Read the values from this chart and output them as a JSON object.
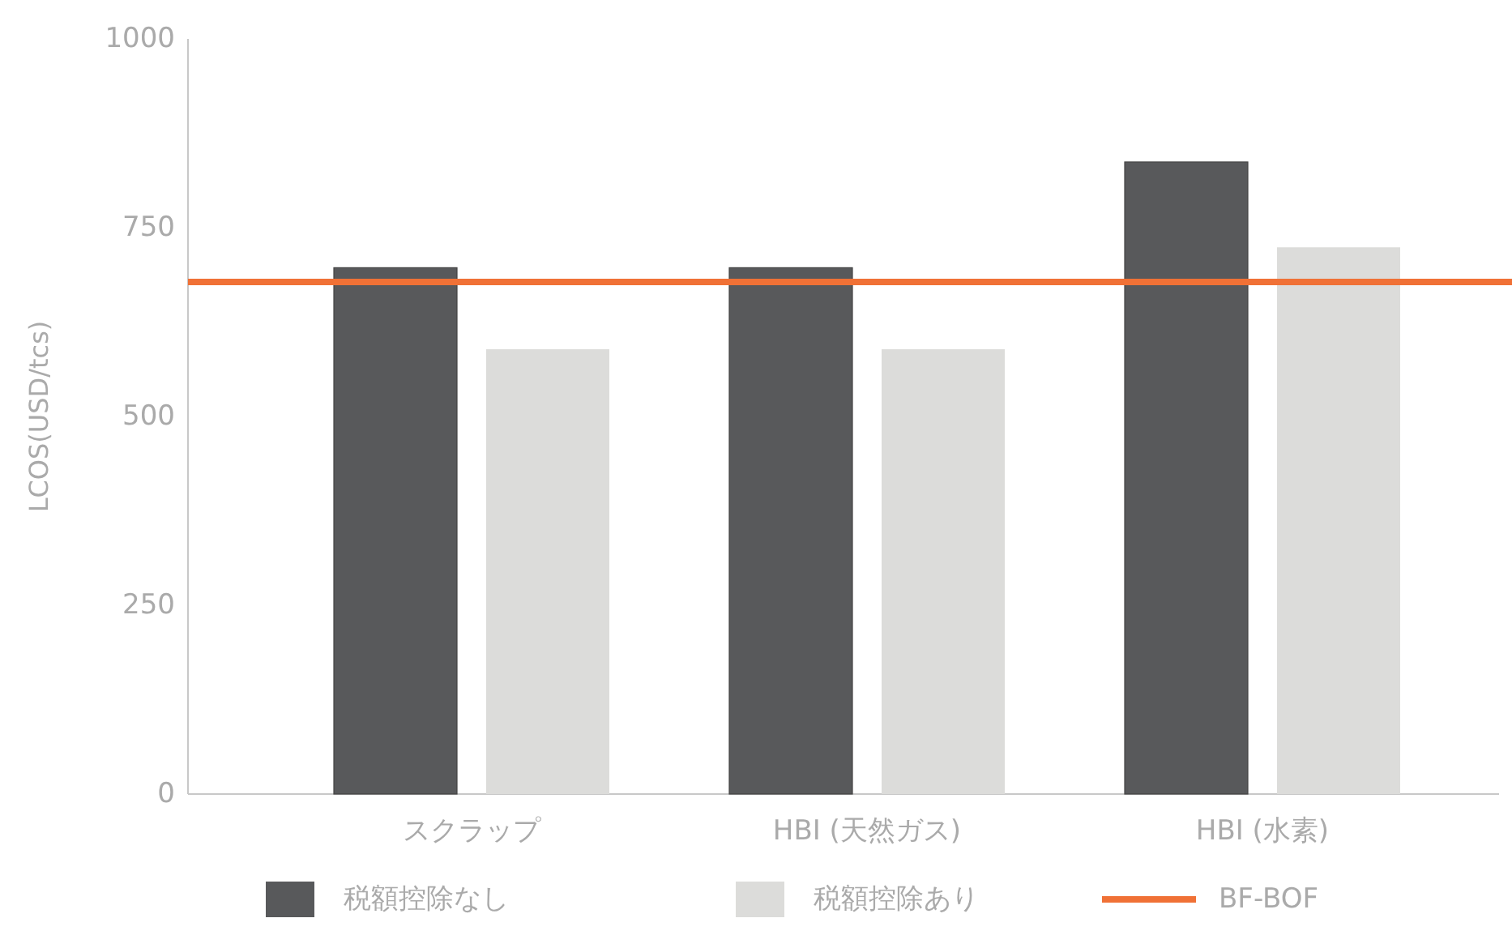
{
  "chart_data": {
    "type": "bar",
    "ylabel": "LCOS(USD/tcs)",
    "categories": [
      "スクラップ",
      "HBI (天然ガス)",
      "HBI (水素)"
    ],
    "series": [
      {
        "name": "税額控除なし",
        "color": "#58595b",
        "values": [
          697,
          697,
          837
        ]
      },
      {
        "name": "税額控除あり",
        "color": "#dcdcda",
        "values": [
          589,
          589,
          724
        ]
      }
    ],
    "ylim": [
      0,
      1000
    ],
    "yticks": [
      0,
      250,
      500,
      750,
      1000
    ],
    "ref_lines": [
      {
        "axis": "y",
        "value": 678,
        "label": "BF-BOF",
        "color": "#f07136"
      }
    ],
    "legend": "bottom",
    "grid": false
  }
}
